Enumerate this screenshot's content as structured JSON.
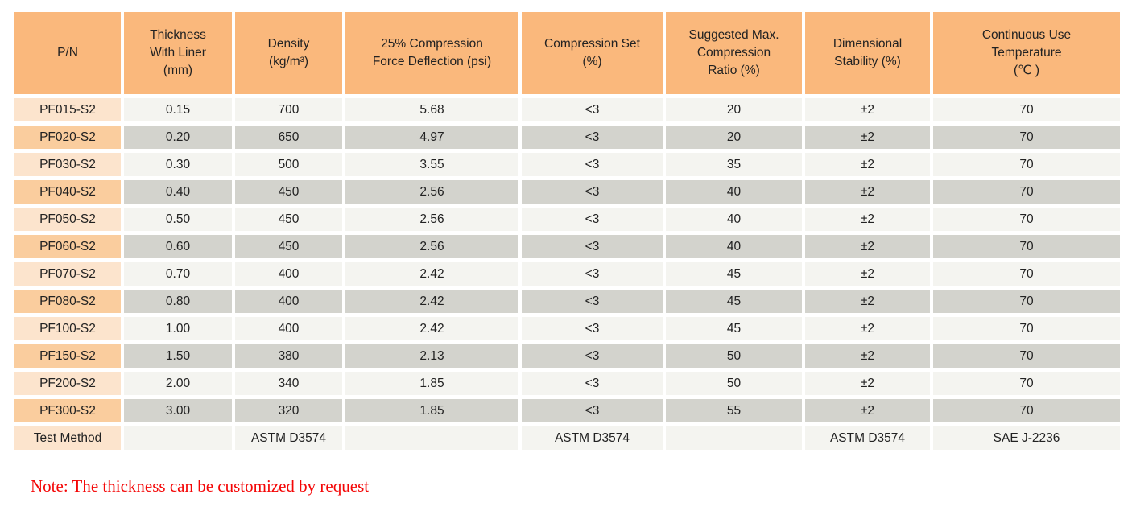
{
  "table": {
    "colors": {
      "header_bg": "#fab87c",
      "pn_light_bg": "#fce4cd",
      "pn_dark_bg": "#facd9e",
      "cell_light_bg": "#f4f4f0",
      "cell_dark_bg": "#d3d3cd",
      "text": "#222222"
    },
    "headers": [
      "P/N",
      "Thickness\nWith Liner\n(mm)",
      "Density\n(kg/m³)",
      "25% Compression\nForce Deflection (psi)",
      "Compression Set\n(%)",
      "Suggested Max.\nCompression\nRatio (%)",
      "Dimensional\nStability (%)",
      "Continuous Use\nTemperature\n(℃ )"
    ],
    "rows": [
      [
        "PF015-S2",
        "0.15",
        "700",
        "5.68",
        "<3",
        "20",
        "±2",
        "70"
      ],
      [
        "PF020-S2",
        "0.20",
        "650",
        "4.97",
        "<3",
        "20",
        "±2",
        "70"
      ],
      [
        "PF030-S2",
        "0.30",
        "500",
        "3.55",
        "<3",
        "35",
        "±2",
        "70"
      ],
      [
        "PF040-S2",
        "0.40",
        "450",
        "2.56",
        "<3",
        "40",
        "±2",
        "70"
      ],
      [
        "PF050-S2",
        "0.50",
        "450",
        "2.56",
        "<3",
        "40",
        "±2",
        "70"
      ],
      [
        "PF060-S2",
        "0.60",
        "450",
        "2.56",
        "<3",
        "40",
        "±2",
        "70"
      ],
      [
        "PF070-S2",
        "0.70",
        "400",
        "2.42",
        "<3",
        "45",
        "±2",
        "70"
      ],
      [
        "PF080-S2",
        "0.80",
        "400",
        "2.42",
        "<3",
        "45",
        "±2",
        "70"
      ],
      [
        "PF100-S2",
        "1.00",
        "400",
        "2.42",
        "<3",
        "45",
        "±2",
        "70"
      ],
      [
        "PF150-S2",
        "1.50",
        "380",
        "2.13",
        "<3",
        "50",
        "±2",
        "70"
      ],
      [
        "PF200-S2",
        "2.00",
        "340",
        "1.85",
        "<3",
        "50",
        "±2",
        "70"
      ],
      [
        "PF300-S2",
        "3.00",
        "320",
        "1.85",
        "<3",
        "55",
        "±2",
        "70"
      ]
    ],
    "footer_row": [
      "Test Method",
      "",
      "ASTM D3574",
      "",
      "ASTM D3574",
      "",
      "ASTM D3574",
      "SAE J-2236"
    ]
  },
  "note": {
    "text": "Note: The thickness can be customized by request",
    "color": "#f40606"
  }
}
